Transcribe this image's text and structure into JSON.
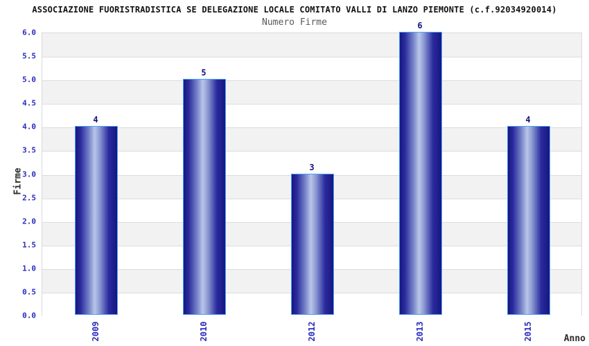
{
  "chart_data": {
    "type": "bar",
    "title": "ASSOCIAZIONE FUORISTRADISTICA SE DELEGAZIONE LOCALE COMITATO VALLI DI LANZO PIEMONTE (c.f.92034920014)",
    "subtitle": "Numero Firme",
    "xlabel": "Anno",
    "ylabel": "Firme",
    "categories": [
      "2009",
      "2010",
      "2012",
      "2013",
      "2015"
    ],
    "values": [
      4,
      5,
      3,
      6,
      4
    ],
    "ylim": [
      0,
      6
    ],
    "ytick_step": 0.5,
    "ytick_labels": [
      "6.0",
      "5.5",
      "5.0",
      "4.5",
      "4.0",
      "3.5",
      "3.0",
      "2.5",
      "2.0",
      "1.5",
      "1.0",
      "0.5",
      "0.0"
    ],
    "grid": "horizontal-bands",
    "legend": "none",
    "colors": {
      "bar_dark": "#17177f",
      "bar_mid": "#2a2a9e",
      "bar_light": "#bac5e9",
      "bar_border": "#4da2ff",
      "tick_label": "#2b2bbe",
      "value_label": "#14147d",
      "band_gray": "#f2f2f2",
      "band_white": "#ffffff",
      "gridline": "#dcdcdc",
      "plot_border": "#d9d9d9"
    }
  }
}
